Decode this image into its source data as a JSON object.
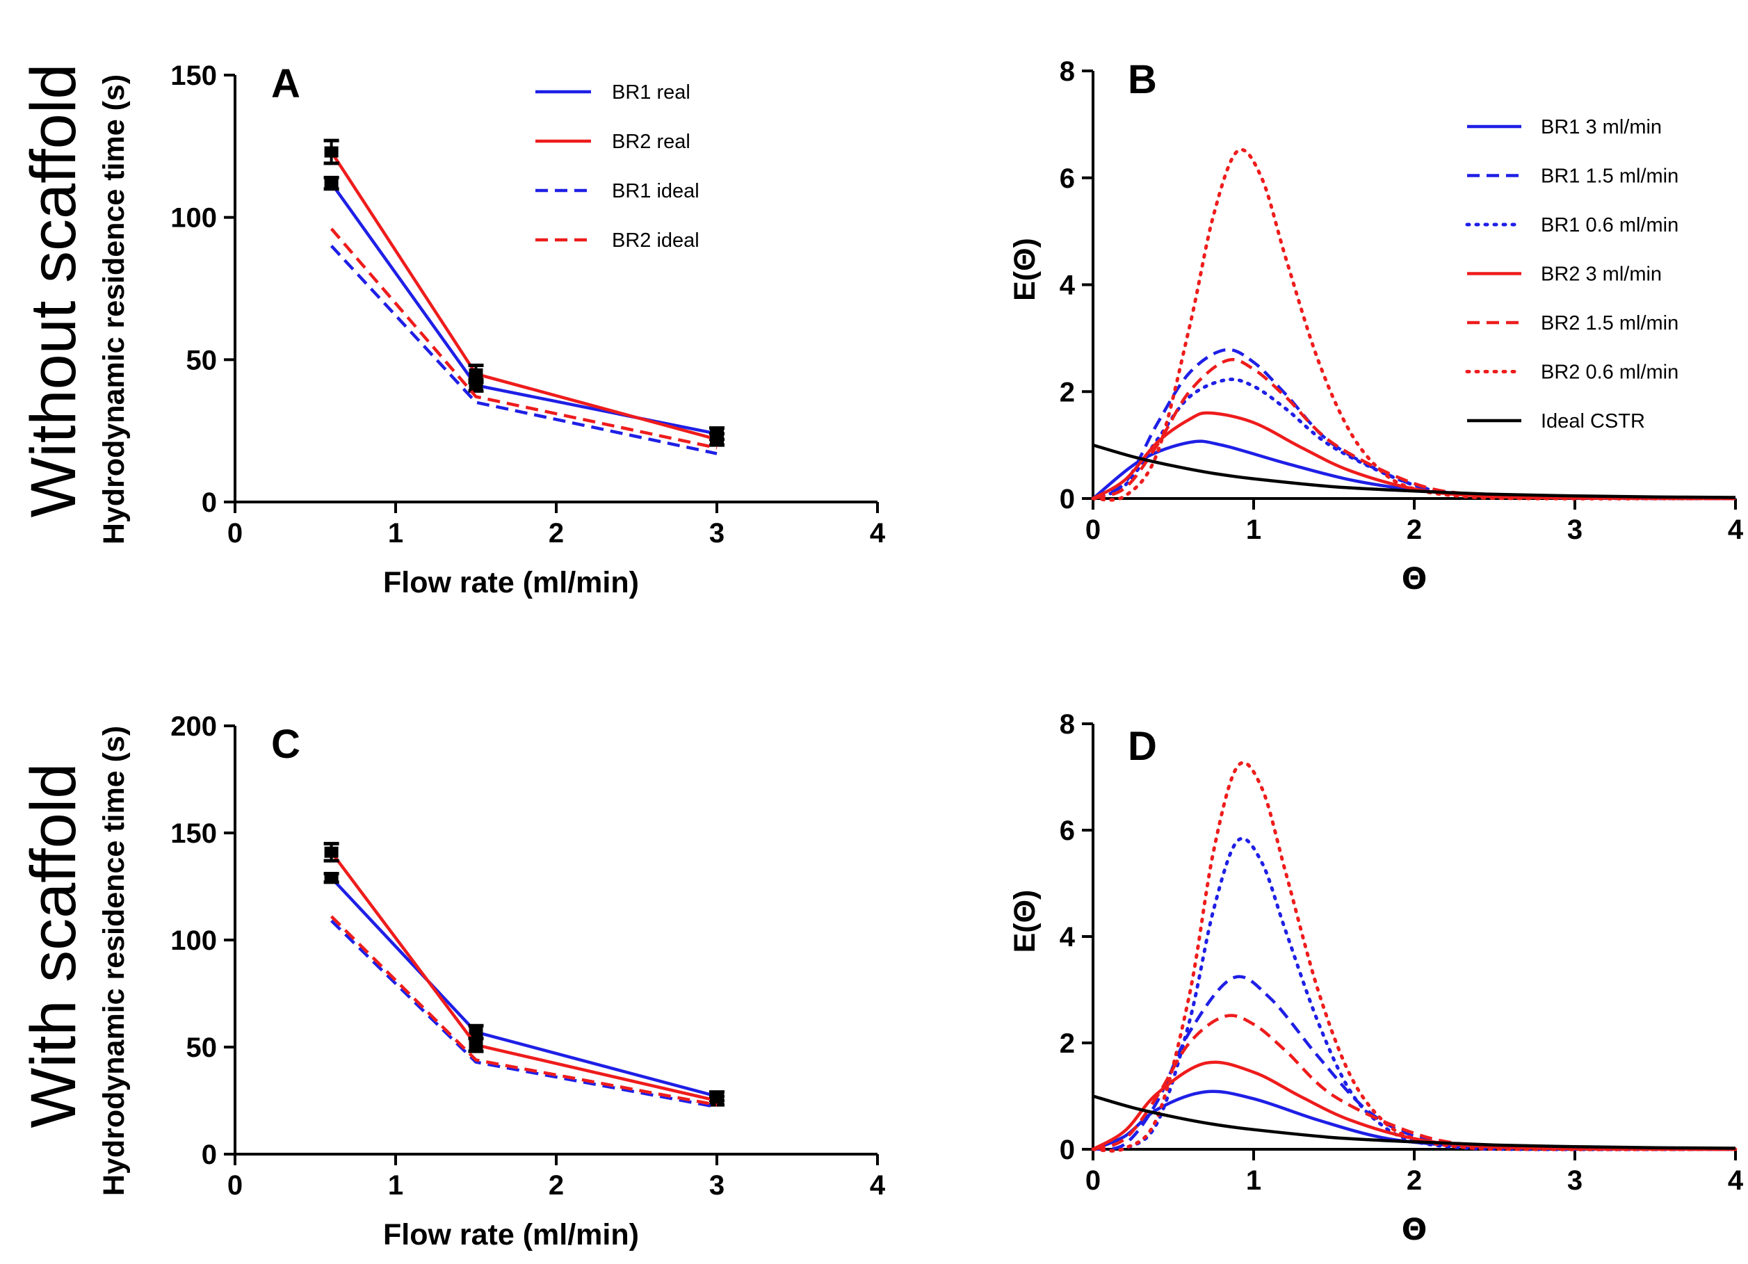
{
  "row_labels": [
    "Without scaffold",
    "With scaffold"
  ],
  "chart_data": [
    {
      "id": "A",
      "type": "line",
      "panel_label": "A",
      "xlabel": "Flow rate (ml/min)",
      "ylabel": "Hydrodynamic residence time (s)",
      "xlim": [
        0,
        4
      ],
      "ylim": [
        0,
        150
      ],
      "xticks": [
        0,
        1,
        2,
        3,
        4
      ],
      "yticks": [
        0,
        50,
        100,
        150
      ],
      "x": [
        0.6,
        1.5,
        3
      ],
      "series": [
        {
          "name": "BR1 real",
          "color": "#1f1fe6",
          "style": "solid",
          "values": [
            112,
            41,
            24
          ],
          "error": [
            2,
            2,
            2
          ]
        },
        {
          "name": "BR2 real",
          "color": "#ee1c1c",
          "style": "solid",
          "values": [
            123,
            45,
            22
          ],
          "error": [
            4,
            3,
            2
          ]
        },
        {
          "name": "BR1 ideal",
          "color": "#1f1fe6",
          "style": "dashed",
          "values": [
            90,
            35,
            17
          ],
          "error": null
        },
        {
          "name": "BR2 ideal",
          "color": "#ee1c1c",
          "style": "dashed",
          "values": [
            96,
            37,
            19
          ],
          "error": null
        }
      ],
      "legend_position": "top-right"
    },
    {
      "id": "B",
      "type": "line",
      "panel_label": "B",
      "xlabel": "Θ",
      "ylabel": "E(Θ)",
      "xlim": [
        0,
        4
      ],
      "ylim": [
        0,
        8
      ],
      "xticks": [
        0,
        1,
        2,
        3,
        4
      ],
      "yticks": [
        0,
        2,
        4,
        6,
        8
      ],
      "series": [
        {
          "name": "BR1 3 ml/min",
          "color": "#1f1fe6",
          "style": "solid",
          "x": [
            0,
            0.3,
            0.6,
            0.8,
            1.2,
            1.6,
            2.0,
            2.4,
            3.0,
            4.0
          ],
          "values": [
            0,
            0.72,
            1.05,
            1.0,
            0.66,
            0.35,
            0.16,
            0.07,
            0.02,
            0.0
          ]
        },
        {
          "name": "BR1 1.5 ml/min",
          "color": "#1f1fe6",
          "style": "dashed",
          "x": [
            0,
            0.2,
            0.4,
            0.6,
            0.82,
            1.0,
            1.2,
            1.5,
            2.0,
            2.4,
            3.0,
            4.0
          ],
          "values": [
            0,
            0.3,
            1.4,
            2.35,
            2.78,
            2.55,
            1.95,
            1.0,
            0.25,
            0.06,
            0.01,
            0.0
          ]
        },
        {
          "name": "BR1 0.6 ml/min",
          "color": "#1f1fe6",
          "style": "dotted",
          "x": [
            0,
            0.2,
            0.4,
            0.6,
            0.83,
            1.0,
            1.2,
            1.5,
            2.0,
            2.4,
            3.0,
            4.0
          ],
          "values": [
            0,
            0.25,
            1.1,
            1.9,
            2.22,
            2.1,
            1.68,
            0.95,
            0.25,
            0.07,
            0.01,
            0.0
          ]
        },
        {
          "name": "BR2 3 ml/min",
          "color": "#ee1c1c",
          "style": "solid",
          "x": [
            0,
            0.2,
            0.4,
            0.6,
            0.73,
            1.0,
            1.3,
            1.6,
            2.0,
            2.4,
            3.0,
            4.0
          ],
          "values": [
            0,
            0.35,
            1.05,
            1.48,
            1.6,
            1.42,
            0.95,
            0.52,
            0.18,
            0.05,
            0.01,
            0.0
          ]
        },
        {
          "name": "BR2 1.5 ml/min",
          "color": "#ee1c1c",
          "style": "dashed",
          "x": [
            0,
            0.2,
            0.4,
            0.6,
            0.83,
            1.0,
            1.2,
            1.5,
            2.0,
            2.4,
            3.0,
            4.0
          ],
          "values": [
            0,
            0.2,
            1.0,
            2.0,
            2.58,
            2.42,
            1.9,
            1.02,
            0.28,
            0.07,
            0.01,
            0.0
          ]
        },
        {
          "name": "BR2 0.6 ml/min",
          "color": "#ee1c1c",
          "style": "dotted",
          "x": [
            0,
            0.2,
            0.4,
            0.6,
            0.75,
            0.9,
            1.05,
            1.2,
            1.4,
            1.6,
            1.8,
            2.0,
            2.3,
            2.7,
            4.0
          ],
          "values": [
            0,
            0.05,
            0.85,
            3.2,
            5.3,
            6.5,
            6.0,
            4.5,
            2.6,
            1.25,
            0.5,
            0.18,
            0.04,
            0.0,
            0.0
          ]
        },
        {
          "name": "Ideal  CSTR",
          "color": "#000000",
          "style": "solid",
          "x": [
            0,
            0.25,
            0.5,
            0.75,
            1.0,
            1.5,
            2.0,
            2.5,
            3.0,
            3.5,
            4.0
          ],
          "values": [
            1.0,
            0.78,
            0.61,
            0.47,
            0.37,
            0.22,
            0.14,
            0.08,
            0.05,
            0.03,
            0.02
          ]
        }
      ],
      "legend_position": "top-right"
    },
    {
      "id": "C",
      "type": "line",
      "panel_label": "C",
      "xlabel": "Flow rate (ml/min)",
      "ylabel": "Hydrodynamic residence time (s)",
      "xlim": [
        0,
        4
      ],
      "ylim": [
        0,
        200
      ],
      "xticks": [
        0,
        1,
        2,
        3,
        4
      ],
      "yticks": [
        0,
        50,
        100,
        150,
        200
      ],
      "x": [
        0.6,
        1.5,
        3
      ],
      "series": [
        {
          "name": "BR1 real",
          "color": "#1f1fe6",
          "style": "solid",
          "values": [
            129,
            57,
            27
          ],
          "error": [
            2,
            3,
            2
          ]
        },
        {
          "name": "BR2 real",
          "color": "#ee1c1c",
          "style": "solid",
          "values": [
            141,
            51,
            25
          ],
          "error": [
            4,
            3,
            2
          ]
        },
        {
          "name": "BR1 ideal",
          "color": "#1f1fe6",
          "style": "dashed",
          "values": [
            109,
            43,
            22
          ],
          "error": null
        },
        {
          "name": "BR2 ideal",
          "color": "#ee1c1c",
          "style": "dashed",
          "values": [
            111,
            44,
            23
          ],
          "error": null
        }
      ]
    },
    {
      "id": "D",
      "type": "line",
      "panel_label": "D",
      "xlabel": "Θ",
      "ylabel": "E(Θ)",
      "xlim": [
        0,
        4
      ],
      "ylim": [
        0,
        8
      ],
      "xticks": [
        0,
        1,
        2,
        3,
        4
      ],
      "yticks": [
        0,
        2,
        4,
        6,
        8
      ],
      "series": [
        {
          "name": "BR1 3 ml/min",
          "color": "#1f1fe6",
          "style": "solid",
          "x": [
            0,
            0.2,
            0.4,
            0.7,
            1.0,
            1.4,
            1.8,
            2.2,
            2.6,
            3.0,
            4.0
          ],
          "values": [
            0,
            0.25,
            0.75,
            1.08,
            0.95,
            0.55,
            0.22,
            0.08,
            0.03,
            0.01,
            0.0
          ]
        },
        {
          "name": "BR1 1.5 ml/min",
          "color": "#1f1fe6",
          "style": "dashed",
          "x": [
            0,
            0.2,
            0.4,
            0.6,
            0.87,
            1.1,
            1.4,
            1.7,
            2.0,
            2.4,
            3.0,
            4.0
          ],
          "values": [
            0,
            0.1,
            0.9,
            2.2,
            3.22,
            2.85,
            1.75,
            0.75,
            0.25,
            0.05,
            0.01,
            0.0
          ]
        },
        {
          "name": "BR1 0.6 ml/min",
          "color": "#1f1fe6",
          "style": "dotted",
          "x": [
            0,
            0.2,
            0.4,
            0.6,
            0.75,
            0.9,
            1.05,
            1.2,
            1.4,
            1.6,
            1.8,
            2.0,
            2.3,
            2.7,
            4.0
          ],
          "values": [
            0,
            0.02,
            0.5,
            2.4,
            4.5,
            5.8,
            5.4,
            4.1,
            2.4,
            1.1,
            0.45,
            0.15,
            0.03,
            0.0,
            0.0
          ]
        },
        {
          "name": "BR2 3 ml/min",
          "color": "#ee1c1c",
          "style": "solid",
          "x": [
            0,
            0.2,
            0.4,
            0.7,
            1.0,
            1.3,
            1.6,
            2.0,
            2.4,
            3.0,
            4.0
          ],
          "values": [
            0,
            0.35,
            1.05,
            1.62,
            1.45,
            0.98,
            0.55,
            0.2,
            0.06,
            0.01,
            0.0
          ]
        },
        {
          "name": "BR2 1.5 ml/min",
          "color": "#ee1c1c",
          "style": "dashed",
          "x": [
            0,
            0.2,
            0.4,
            0.6,
            0.82,
            1.0,
            1.2,
            1.5,
            2.0,
            2.4,
            3.0,
            4.0
          ],
          "values": [
            0,
            0.2,
            1.0,
            2.0,
            2.5,
            2.35,
            1.85,
            1.0,
            0.3,
            0.07,
            0.01,
            0.0
          ]
        },
        {
          "name": "BR2 0.6 ml/min",
          "color": "#ee1c1c",
          "style": "dotted",
          "x": [
            0,
            0.2,
            0.4,
            0.6,
            0.75,
            0.9,
            1.05,
            1.2,
            1.4,
            1.6,
            1.8,
            2.0,
            2.3,
            2.7,
            4.0
          ],
          "values": [
            0,
            0.02,
            0.6,
            2.9,
            5.6,
            7.2,
            6.8,
            5.2,
            3.0,
            1.4,
            0.55,
            0.2,
            0.04,
            0.0,
            0.0
          ]
        },
        {
          "name": "Ideal  CSTR",
          "color": "#000000",
          "style": "solid",
          "x": [
            0,
            0.25,
            0.5,
            0.75,
            1.0,
            1.5,
            2.0,
            2.5,
            3.0,
            3.5,
            4.0
          ],
          "values": [
            1.0,
            0.78,
            0.61,
            0.47,
            0.37,
            0.22,
            0.14,
            0.08,
            0.05,
            0.03,
            0.02
          ]
        }
      ]
    }
  ]
}
